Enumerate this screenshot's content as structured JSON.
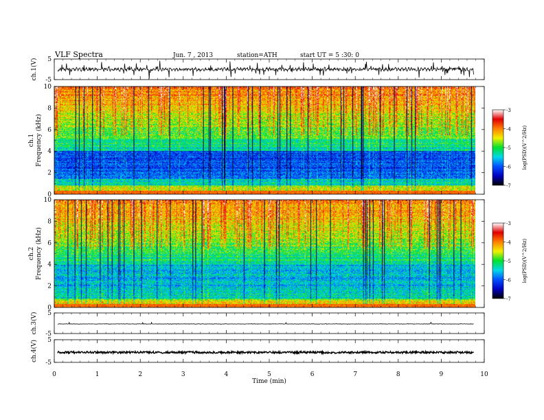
{
  "header": {
    "title": "VLF Spectra",
    "date": "Jun. 7 , 2013",
    "station": "station=ATH",
    "start": "start UT = 5 :30: 0"
  },
  "chart_data": {
    "type": "heatmap",
    "title": "VLF Spectra",
    "xlabel": "Time (min)",
    "xlim": [
      0,
      10
    ],
    "x_ticks": [
      "0",
      "1",
      "2",
      "3",
      "4",
      "5",
      "6",
      "7",
      "8",
      "9",
      "10"
    ],
    "panels": [
      {
        "name": "ch.1 waveform",
        "ylabel": "ch.1(V)",
        "ylim": [
          -5,
          5
        ],
        "y_ticks": [
          "5",
          "-5"
        ]
      },
      {
        "name": "ch.1 spectrogram",
        "ylabel": "ch.1 Frequency (kHz)",
        "ylim": [
          0,
          10
        ],
        "y_ticks": [
          "0",
          "2",
          "4",
          "6",
          "8",
          "10"
        ],
        "colorbar_label": "log(PSD)(V^2/Hz)",
        "colorbar_range": [
          -7,
          -3
        ],
        "colorbar_ticks": [
          "-3",
          "-4",
          "-5",
          "-6",
          "-7"
        ]
      },
      {
        "name": "ch.2 spectrogram",
        "ylabel": "ch.2 Frequency (kHz)",
        "ylim": [
          0,
          10
        ],
        "y_ticks": [
          "0",
          "2",
          "4",
          "6",
          "8",
          "10"
        ],
        "colorbar_label": "log(PSD)(V^2/Hz)",
        "colorbar_range": [
          -7,
          -3
        ],
        "colorbar_ticks": [
          "-3",
          "-4",
          "-5",
          "-6",
          "-7"
        ]
      },
      {
        "name": "ch.3 waveform",
        "ylabel": "ch.3(V)",
        "ylim": [
          -5,
          5
        ],
        "y_ticks": [
          "5",
          "-5"
        ]
      },
      {
        "name": "ch.4 waveform",
        "ylabel": "ch.4(V)",
        "ylim": [
          -5,
          5
        ],
        "y_ticks": [
          "5",
          "-5"
        ]
      }
    ],
    "data_end_min": 9.8,
    "colormap": [
      "#000000",
      "#0000c0",
      "#0050ff",
      "#00d8e8",
      "#00e030",
      "#f0f000",
      "#ff8000",
      "#e00000",
      "#ffffff"
    ]
  }
}
